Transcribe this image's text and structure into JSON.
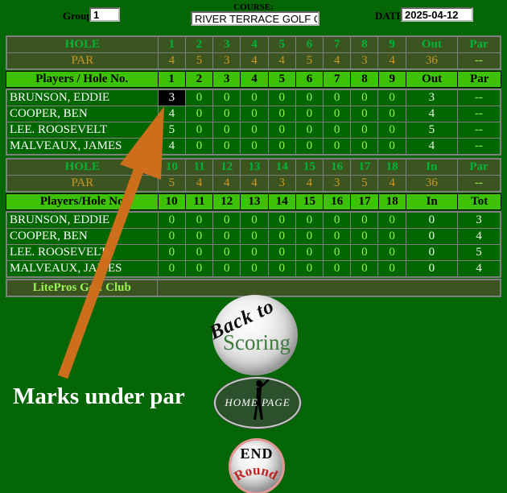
{
  "header": {
    "group_label": "Group:",
    "group_value": "1",
    "course_label": "COURSE:",
    "course_value": "RIVER TERRACE GOLF C",
    "date_label": "DATE:",
    "date_value": "2025-04-12"
  },
  "scorecard": {
    "front": {
      "hole_header": {
        "label": "HOLE",
        "holes": [
          "1",
          "2",
          "3",
          "4",
          "5",
          "6",
          "7",
          "8",
          "9"
        ],
        "sum_label": "Out",
        "extra_label": "Par"
      },
      "par_row": {
        "label": "PAR",
        "values": [
          "4",
          "5",
          "3",
          "4",
          "4",
          "5",
          "4",
          "3",
          "4"
        ],
        "sum": "36",
        "extra": "--"
      },
      "players_header": {
        "label": "Players / Hole No.",
        "holes": [
          "1",
          "2",
          "3",
          "4",
          "5",
          "6",
          "7",
          "8",
          "9"
        ],
        "sum_label": "Out",
        "extra_label": "Par"
      },
      "players": [
        {
          "name": "BRUNSON, EDDIE",
          "scores": [
            "3",
            "0",
            "0",
            "0",
            "0",
            "0",
            "0",
            "0",
            "0"
          ],
          "sum": "3",
          "extra": "--"
        },
        {
          "name": "COOPER, BEN",
          "scores": [
            "4",
            "0",
            "0",
            "0",
            "0",
            "0",
            "0",
            "0",
            "0"
          ],
          "sum": "4",
          "extra": "--"
        },
        {
          "name": "LEE. ROOSEVELT",
          "scores": [
            "5",
            "0",
            "0",
            "0",
            "0",
            "0",
            "0",
            "0",
            "0"
          ],
          "sum": "5",
          "extra": "--"
        },
        {
          "name": "MALVEAUX, JAMES",
          "scores": [
            "4",
            "0",
            "0",
            "0",
            "0",
            "0",
            "0",
            "0",
            "0"
          ],
          "sum": "4",
          "extra": "--"
        }
      ],
      "highlight": {
        "player": 0,
        "hole": 0
      }
    },
    "back": {
      "hole_header": {
        "label": "HOLE",
        "holes": [
          "10",
          "11",
          "12",
          "13",
          "14",
          "15",
          "16",
          "17",
          "18"
        ],
        "sum_label": "In",
        "extra_label": "Par"
      },
      "par_row": {
        "label": "PAR",
        "values": [
          "5",
          "4",
          "4",
          "4",
          "3",
          "4",
          "3",
          "5",
          "4"
        ],
        "sum": "36",
        "extra": "--"
      },
      "players_header": {
        "label": "Players/Hole No",
        "holes": [
          "10",
          "11",
          "12",
          "13",
          "14",
          "15",
          "16",
          "17",
          "18"
        ],
        "sum_label": "In",
        "extra_label": "Tot"
      },
      "players": [
        {
          "name": "BRUNSON, EDDIE",
          "scores": [
            "0",
            "0",
            "0",
            "0",
            "0",
            "0",
            "0",
            "0",
            "0"
          ],
          "sum": "0",
          "extra": "3"
        },
        {
          "name": "COOPER, BEN",
          "scores": [
            "0",
            "0",
            "0",
            "0",
            "0",
            "0",
            "0",
            "0",
            "0"
          ],
          "sum": "0",
          "extra": "4"
        },
        {
          "name": "LEE. ROOSEVELT",
          "scores": [
            "0",
            "0",
            "0",
            "0",
            "0",
            "0",
            "0",
            "0",
            "0"
          ],
          "sum": "0",
          "extra": "5"
        },
        {
          "name": "MALVEAUX, JAMES",
          "scores": [
            "0",
            "0",
            "0",
            "0",
            "0",
            "0",
            "0",
            "0",
            "0"
          ],
          "sum": "0",
          "extra": "4"
        }
      ]
    },
    "club_label": "LitePros Golf Club"
  },
  "annotation": {
    "text": "Marks under par"
  },
  "buttons": {
    "back_to_scoring": {
      "line1": "Back to",
      "line2": "Scoring"
    },
    "home_page": {
      "label": "HOME PAGE"
    },
    "end_round": {
      "line1": "END",
      "line2": "Round"
    }
  },
  "colors": {
    "page_bg": "#056605",
    "row_bg": "#006600",
    "header_bg": "#3c5420",
    "bright_row_bg": "#3cc203",
    "hole_text": "#00b535",
    "par_text": "#cc9922",
    "score_zero": "#98f050",
    "score_entered": "#e8ffe0",
    "highlight_bg": "#000000",
    "arrow": "#cc6e1c",
    "scoring_text": "#3d7a3d",
    "round_text": "#c22222"
  }
}
